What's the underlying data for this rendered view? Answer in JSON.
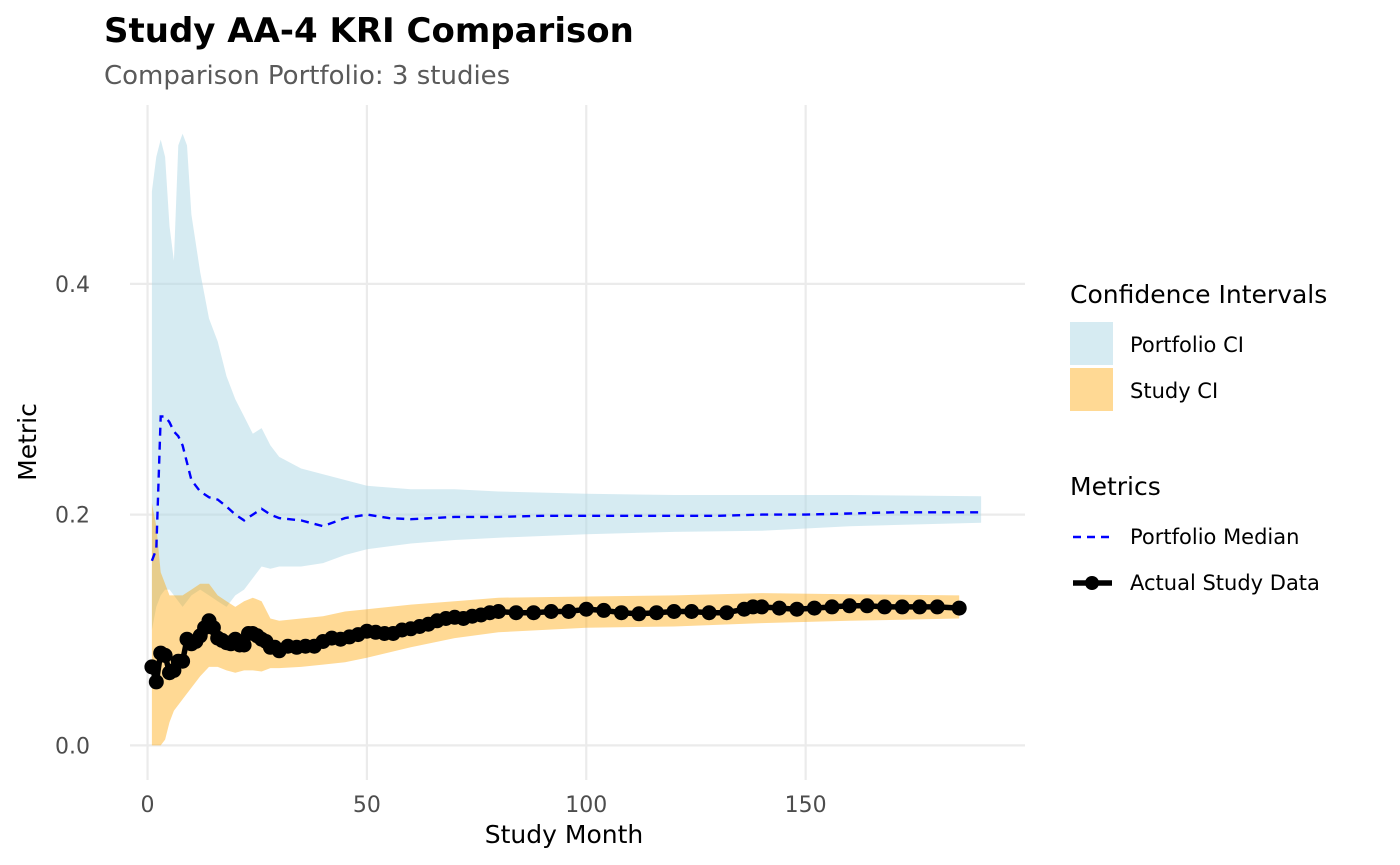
{
  "chart_data": {
    "type": "line",
    "title": "Study AA-4 KRI Comparison",
    "subtitle": "Comparison Portfolio: 3 studies",
    "xlabel": "Study Month",
    "ylabel": "Metric",
    "xlim": [
      -4,
      200
    ],
    "ylim": [
      -0.03,
      0.555
    ],
    "x_ticks": [
      0,
      50,
      100,
      150
    ],
    "x_tick_labels": [
      "0",
      "50",
      "100",
      "150"
    ],
    "y_ticks": [
      0.0,
      0.2,
      0.4
    ],
    "y_tick_labels": [
      "0.0",
      "0.2",
      "0.4"
    ],
    "grid": true,
    "legend_position": "right",
    "colors": {
      "portfolio_ci": "#add8e6",
      "study_ci": "#ffa500",
      "portfolio_median": "#0000ff",
      "actual_study": "#000000"
    },
    "legends": [
      {
        "title": "Confidence Intervals",
        "entries": [
          "Portfolio CI",
          "Study CI"
        ]
      },
      {
        "title": "Metrics",
        "entries": [
          "Portfolio Median",
          "Actual Study Data"
        ]
      }
    ],
    "series": [
      {
        "name": "Portfolio CI",
        "type": "band",
        "x": [
          1,
          2,
          3,
          4,
          5,
          6,
          7,
          8,
          9,
          10,
          12,
          14,
          16,
          18,
          20,
          22,
          24,
          26,
          28,
          30,
          35,
          40,
          45,
          50,
          60,
          70,
          80,
          100,
          120,
          140,
          160,
          190
        ],
        "lower": [
          0.1,
          0.12,
          0.13,
          0.135,
          0.135,
          0.13,
          0.125,
          0.12,
          0.125,
          0.13,
          0.135,
          0.13,
          0.125,
          0.12,
          0.13,
          0.135,
          0.145,
          0.155,
          0.153,
          0.155,
          0.155,
          0.158,
          0.165,
          0.17,
          0.175,
          0.178,
          0.18,
          0.183,
          0.185,
          0.186,
          0.19,
          0.193
        ],
        "upper": [
          0.48,
          0.51,
          0.525,
          0.51,
          0.45,
          0.42,
          0.52,
          0.53,
          0.52,
          0.46,
          0.41,
          0.37,
          0.35,
          0.32,
          0.3,
          0.285,
          0.27,
          0.275,
          0.26,
          0.25,
          0.24,
          0.235,
          0.23,
          0.225,
          0.222,
          0.222,
          0.22,
          0.218,
          0.217,
          0.217,
          0.217,
          0.216
        ]
      },
      {
        "name": "Study CI",
        "type": "band",
        "x": [
          1,
          2,
          3,
          4,
          5,
          6,
          8,
          10,
          12,
          14,
          16,
          18,
          20,
          22,
          24,
          26,
          28,
          30,
          35,
          40,
          45,
          50,
          60,
          70,
          80,
          100,
          120,
          140,
          160,
          185
        ],
        "lower": [
          0.0,
          0.0,
          0.0,
          0.005,
          0.02,
          0.03,
          0.04,
          0.05,
          0.06,
          0.068,
          0.068,
          0.065,
          0.063,
          0.065,
          0.065,
          0.064,
          0.067,
          0.067,
          0.068,
          0.07,
          0.072,
          0.076,
          0.085,
          0.093,
          0.098,
          0.102,
          0.103,
          0.106,
          0.108,
          0.11
        ],
        "upper": [
          0.21,
          0.19,
          0.15,
          0.14,
          0.13,
          0.13,
          0.13,
          0.135,
          0.14,
          0.14,
          0.13,
          0.125,
          0.12,
          0.125,
          0.128,
          0.125,
          0.11,
          0.108,
          0.11,
          0.112,
          0.116,
          0.118,
          0.122,
          0.125,
          0.128,
          0.129,
          0.13,
          0.132,
          0.131,
          0.13
        ]
      },
      {
        "name": "Portfolio Median",
        "type": "line",
        "x": [
          1,
          2,
          3,
          4,
          5,
          6,
          7,
          8,
          9,
          10,
          11,
          12,
          14,
          16,
          18,
          20,
          22,
          24,
          26,
          28,
          30,
          35,
          40,
          45,
          50,
          55,
          60,
          70,
          80,
          90,
          100,
          110,
          120,
          130,
          140,
          150,
          160,
          170,
          180,
          190
        ],
        "y": [
          0.16,
          0.17,
          0.285,
          0.285,
          0.28,
          0.272,
          0.268,
          0.26,
          0.245,
          0.23,
          0.225,
          0.22,
          0.215,
          0.213,
          0.207,
          0.2,
          0.195,
          0.2,
          0.205,
          0.2,
          0.197,
          0.195,
          0.19,
          0.197,
          0.2,
          0.197,
          0.196,
          0.198,
          0.198,
          0.199,
          0.199,
          0.199,
          0.199,
          0.199,
          0.2,
          0.2,
          0.201,
          0.202,
          0.202,
          0.202
        ]
      },
      {
        "name": "Actual Study Data",
        "type": "line_points",
        "x": [
          1,
          2,
          3,
          4,
          5,
          6,
          7,
          8,
          9,
          10,
          11,
          12,
          13,
          14,
          15,
          16,
          17,
          18,
          19,
          20,
          21,
          22,
          23,
          24,
          25,
          26,
          27,
          28,
          29,
          30,
          32,
          34,
          36,
          38,
          40,
          42,
          44,
          46,
          48,
          50,
          52,
          54,
          56,
          58,
          60,
          62,
          64,
          66,
          68,
          70,
          72,
          74,
          76,
          78,
          80,
          84,
          88,
          92,
          96,
          100,
          104,
          108,
          112,
          116,
          120,
          124,
          128,
          132,
          136,
          138,
          140,
          144,
          148,
          152,
          156,
          160,
          164,
          168,
          172,
          176,
          180,
          185
        ],
        "y": [
          0.068,
          0.055,
          0.08,
          0.078,
          0.063,
          0.065,
          0.073,
          0.073,
          0.092,
          0.088,
          0.09,
          0.095,
          0.102,
          0.108,
          0.102,
          0.093,
          0.091,
          0.089,
          0.088,
          0.092,
          0.087,
          0.087,
          0.097,
          0.097,
          0.095,
          0.092,
          0.09,
          0.085,
          0.085,
          0.082,
          0.086,
          0.085,
          0.086,
          0.086,
          0.09,
          0.093,
          0.092,
          0.094,
          0.096,
          0.099,
          0.098,
          0.097,
          0.097,
          0.1,
          0.101,
          0.103,
          0.105,
          0.108,
          0.11,
          0.111,
          0.11,
          0.112,
          0.113,
          0.115,
          0.116,
          0.115,
          0.115,
          0.116,
          0.116,
          0.118,
          0.117,
          0.115,
          0.114,
          0.115,
          0.116,
          0.116,
          0.115,
          0.115,
          0.118,
          0.12,
          0.12,
          0.119,
          0.118,
          0.119,
          0.12,
          0.121,
          0.121,
          0.12,
          0.12,
          0.12,
          0.12,
          0.119
        ]
      }
    ]
  }
}
